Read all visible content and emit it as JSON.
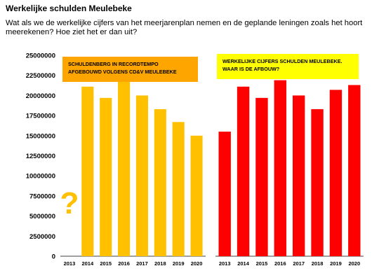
{
  "page": {
    "title": "Werkelijke schulden Meulebeke",
    "intro": "Wat als we de werkelijke cijfers van het meerjarenplan nemen en de geplande leningen zoals het hoort meerekenen?   Hoe ziet het er dan uit?"
  },
  "chart_data": [
    {
      "type": "bar",
      "categories": [
        "2013",
        "2014",
        "2015",
        "2016",
        "2017",
        "2018",
        "2019",
        "2020"
      ],
      "series": [
        {
          "values": [
            null,
            21100000,
            19700000,
            21900000,
            20000000,
            18300000,
            16700000,
            15000000
          ]
        }
      ],
      "color": "#ffc000",
      "annotation": "?",
      "label_box": {
        "lines": [
          "SCHULDENBERG IN RECORDTEMPO",
          "AFGEBOUWD VOLGENS CD&V MEULEBEKE"
        ],
        "background": "#ffa500",
        "text_color": "#000000"
      },
      "ylim": [
        0,
        25000000
      ],
      "yticks": [
        "25000000",
        "22500000",
        "20000000",
        "17500000",
        "15000000",
        "12500000",
        "10000000",
        "7500000",
        "5000000",
        "2500000",
        "0"
      ],
      "grid": false
    },
    {
      "type": "bar",
      "categories": [
        "2013",
        "2014",
        "2015",
        "2016",
        "2017",
        "2018",
        "2019",
        "2020"
      ],
      "series": [
        {
          "values": [
            15500000,
            21100000,
            19700000,
            21900000,
            20000000,
            18300000,
            20700000,
            21300000
          ]
        }
      ],
      "color": "#ff0000",
      "label_box": {
        "lines": [
          "WERKELIJKE CIJFERS SCHULDEN MEULEBEKE.",
          "WAAR IS DE AFBOUW?"
        ],
        "background": "#ffff00",
        "text_color": "#000000"
      },
      "ylim": [
        0,
        25000000
      ],
      "grid": false
    }
  ]
}
